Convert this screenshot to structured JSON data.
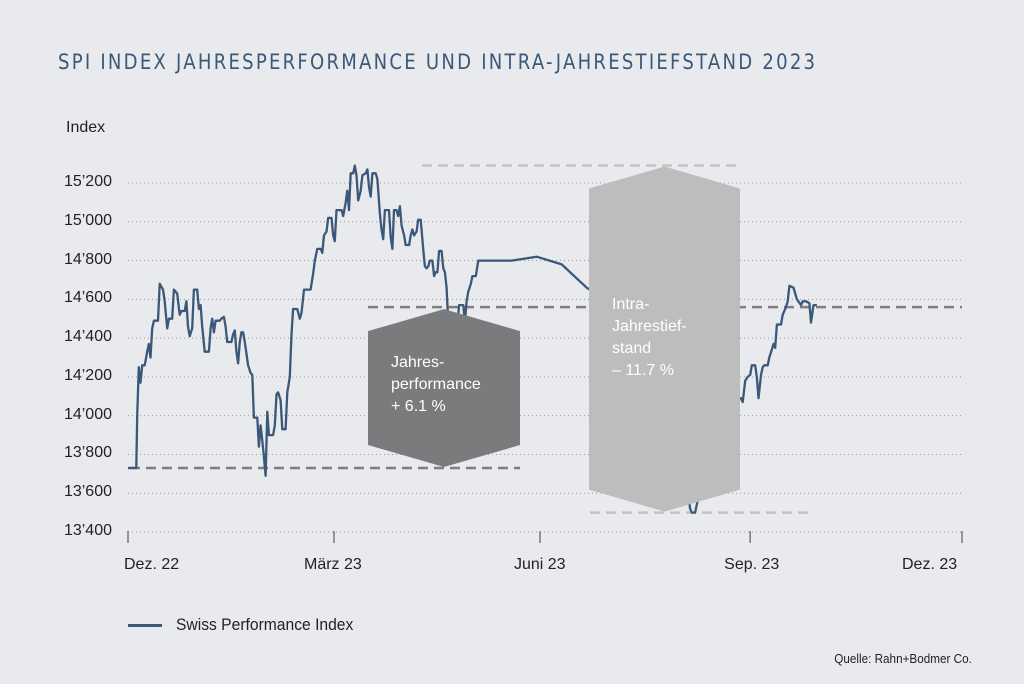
{
  "title": "SPI INDEX JAHRESPERFORMANCE UND INTRA-JAHRESTIEFSTAND 2023",
  "source": "Quelle: Rahn+Bodmer Co.",
  "colors": {
    "background": "#e9eaee",
    "line": "#3b5878",
    "title": "#3b5878",
    "performance_box": "#7a7b7d",
    "drawdown_box": "#bdbdbd",
    "dashed_dark": "#7f7f7f",
    "dashed_light": "#c4c4c4",
    "grid": "#9a9a9a"
  },
  "chart_data": {
    "type": "line",
    "title": "SPI INDEX JAHRESPERFORMANCE UND INTRA-JAHRESTIEFSTAND 2023",
    "ylabel": "Index",
    "xlabel": "",
    "ylim": [
      13400,
      15300
    ],
    "yticks": [
      13400,
      13600,
      13800,
      14000,
      14200,
      14400,
      14600,
      14800,
      15000,
      15200
    ],
    "ytick_labels": [
      "13’400",
      "13’600",
      "13’800",
      "14’000",
      "14’200",
      "14’400",
      "14’600",
      "14’800",
      "15’000",
      "15’200"
    ],
    "xticks": [
      "Dez. 22",
      "März 23",
      "Juni 23",
      "Sep. 23",
      "Dez. 23"
    ],
    "xlim_note": "x values are fractions of the span from Dez. 22 (0) to Dez. 23 (1)",
    "grid": true,
    "legend": {
      "position": "bottom-left",
      "entries": [
        "Swiss Performance Index"
      ]
    },
    "series": [
      {
        "name": "Swiss Performance Index",
        "points": [
          [
            0.0,
            13730
          ],
          [
            0.01,
            13730
          ],
          [
            0.011,
            14000
          ],
          [
            0.013,
            14250
          ],
          [
            0.015,
            14170
          ],
          [
            0.017,
            14260
          ],
          [
            0.02,
            14260
          ],
          [
            0.023,
            14330
          ],
          [
            0.025,
            14370
          ],
          [
            0.027,
            14300
          ],
          [
            0.029,
            14450
          ],
          [
            0.031,
            14490
          ],
          [
            0.036,
            14490
          ],
          [
            0.038,
            14680
          ],
          [
            0.042,
            14650
          ],
          [
            0.044,
            14590
          ],
          [
            0.047,
            14450
          ],
          [
            0.049,
            14500
          ],
          [
            0.053,
            14500
          ],
          [
            0.055,
            14650
          ],
          [
            0.059,
            14630
          ],
          [
            0.062,
            14520
          ],
          [
            0.064,
            14540
          ],
          [
            0.068,
            14540
          ],
          [
            0.07,
            14590
          ],
          [
            0.072,
            14460
          ],
          [
            0.074,
            14410
          ],
          [
            0.077,
            14450
          ],
          [
            0.079,
            14650
          ],
          [
            0.083,
            14650
          ],
          [
            0.085,
            14550
          ],
          [
            0.087,
            14570
          ],
          [
            0.089,
            14460
          ],
          [
            0.092,
            14330
          ],
          [
            0.097,
            14330
          ],
          [
            0.099,
            14450
          ],
          [
            0.101,
            14500
          ],
          [
            0.103,
            14430
          ],
          [
            0.105,
            14490
          ],
          [
            0.11,
            14490
          ],
          [
            0.112,
            14500
          ],
          [
            0.115,
            14510
          ],
          [
            0.117,
            14460
          ],
          [
            0.119,
            14380
          ],
          [
            0.124,
            14380
          ],
          [
            0.126,
            14420
          ],
          [
            0.128,
            14440
          ],
          [
            0.13,
            14330
          ],
          [
            0.132,
            14270
          ],
          [
            0.134,
            14380
          ],
          [
            0.136,
            14430
          ],
          [
            0.138,
            14430
          ],
          [
            0.14,
            14380
          ],
          [
            0.144,
            14260
          ],
          [
            0.147,
            14220
          ],
          [
            0.149,
            14210
          ],
          [
            0.151,
            13990
          ],
          [
            0.155,
            13990
          ],
          [
            0.157,
            13840
          ],
          [
            0.159,
            13950
          ],
          [
            0.161,
            13870
          ],
          [
            0.163,
            13790
          ],
          [
            0.165,
            13690
          ],
          [
            0.167,
            14020
          ],
          [
            0.169,
            13900
          ],
          [
            0.174,
            13900
          ],
          [
            0.176,
            13950
          ],
          [
            0.178,
            14110
          ],
          [
            0.18,
            14120
          ],
          [
            0.183,
            14080
          ],
          [
            0.185,
            13930
          ],
          [
            0.189,
            13930
          ],
          [
            0.191,
            14120
          ],
          [
            0.194,
            14200
          ],
          [
            0.196,
            14420
          ],
          [
            0.198,
            14550
          ],
          [
            0.203,
            14550
          ],
          [
            0.206,
            14500
          ],
          [
            0.208,
            14530
          ],
          [
            0.211,
            14650
          ],
          [
            0.219,
            14650
          ],
          [
            0.222,
            14730
          ],
          [
            0.224,
            14800
          ],
          [
            0.227,
            14860
          ],
          [
            0.231,
            14860
          ],
          [
            0.233,
            14840
          ],
          [
            0.235,
            14930
          ],
          [
            0.238,
            14950
          ],
          [
            0.24,
            15020
          ],
          [
            0.244,
            15020
          ],
          [
            0.246,
            14930
          ],
          [
            0.248,
            14900
          ],
          [
            0.25,
            15060
          ],
          [
            0.256,
            15060
          ],
          [
            0.258,
            15030
          ],
          [
            0.261,
            15100
          ],
          [
            0.263,
            15160
          ],
          [
            0.265,
            15060
          ],
          [
            0.267,
            15250
          ],
          [
            0.27,
            15250
          ],
          [
            0.272,
            15290
          ],
          [
            0.274,
            15240
          ],
          [
            0.276,
            15110
          ],
          [
            0.279,
            15160
          ],
          [
            0.281,
            15240
          ],
          [
            0.285,
            15250
          ],
          [
            0.287,
            15270
          ],
          [
            0.289,
            15180
          ],
          [
            0.291,
            15130
          ],
          [
            0.293,
            15250
          ],
          [
            0.297,
            15250
          ],
          [
            0.299,
            15220
          ],
          [
            0.302,
            15040
          ],
          [
            0.304,
            14960
          ],
          [
            0.306,
            14910
          ],
          [
            0.308,
            15060
          ],
          [
            0.313,
            15060
          ],
          [
            0.315,
            14920
          ],
          [
            0.317,
            14860
          ],
          [
            0.319,
            15060
          ],
          [
            0.322,
            15060
          ],
          [
            0.324,
            15030
          ],
          [
            0.326,
            15080
          ],
          [
            0.328,
            14980
          ],
          [
            0.331,
            14930
          ],
          [
            0.333,
            14880
          ],
          [
            0.337,
            14880
          ],
          [
            0.339,
            14930
          ],
          [
            0.341,
            14960
          ],
          [
            0.343,
            14930
          ],
          [
            0.346,
            14950
          ],
          [
            0.348,
            15010
          ],
          [
            0.351,
            15010
          ],
          [
            0.354,
            14860
          ],
          [
            0.356,
            14770
          ],
          [
            0.358,
            14760
          ],
          [
            0.36,
            14770
          ],
          [
            0.362,
            14800
          ],
          [
            0.365,
            14800
          ],
          [
            0.367,
            14720
          ],
          [
            0.369,
            14740
          ],
          [
            0.371,
            14740
          ],
          [
            0.373,
            14850
          ],
          [
            0.376,
            14850
          ],
          [
            0.378,
            14760
          ],
          [
            0.38,
            14740
          ],
          [
            0.382,
            14660
          ],
          [
            0.384,
            14470
          ],
          [
            0.386,
            14370
          ],
          [
            0.391,
            14370
          ],
          [
            0.393,
            14440
          ],
          [
            0.395,
            14470
          ],
          [
            0.397,
            14570
          ],
          [
            0.402,
            14570
          ],
          [
            0.404,
            14480
          ],
          [
            0.406,
            14590
          ],
          [
            0.408,
            14640
          ],
          [
            0.411,
            14680
          ],
          [
            0.413,
            14720
          ],
          [
            0.415,
            14720
          ],
          [
            0.417,
            14720
          ],
          [
            0.42,
            14800
          ],
          [
            0.46,
            14800
          ],
          [
            0.49,
            14820
          ],
          [
            0.52,
            14780
          ],
          [
            0.55,
            14660
          ],
          [
            0.585,
            14560
          ],
          [
            0.6,
            14700
          ],
          [
            0.61,
            14350
          ],
          [
            0.613,
            14260
          ],
          [
            0.615,
            14310
          ],
          [
            0.617,
            14390
          ],
          [
            0.619,
            14390
          ],
          [
            0.621,
            14310
          ],
          [
            0.624,
            14130
          ],
          [
            0.626,
            14080
          ],
          [
            0.628,
            14100
          ],
          [
            0.631,
            14140
          ],
          [
            0.635,
            14140
          ],
          [
            0.637,
            14100
          ],
          [
            0.64,
            14360
          ],
          [
            0.642,
            14410
          ],
          [
            0.644,
            14330
          ],
          [
            0.646,
            14230
          ],
          [
            0.652,
            14230
          ],
          [
            0.654,
            14170
          ],
          [
            0.656,
            14000
          ],
          [
            0.658,
            13780
          ],
          [
            0.661,
            13560
          ],
          [
            0.667,
            13560
          ],
          [
            0.669,
            13550
          ],
          [
            0.672,
            13590
          ],
          [
            0.674,
            13520
          ],
          [
            0.676,
            13500
          ],
          [
            0.68,
            13500
          ],
          [
            0.683,
            13560
          ],
          [
            0.687,
            13620
          ],
          [
            0.69,
            13750
          ],
          [
            0.693,
            13890
          ],
          [
            0.697,
            13890
          ],
          [
            0.699,
            13880
          ],
          [
            0.702,
            13870
          ],
          [
            0.706,
            13850
          ],
          [
            0.709,
            13860
          ],
          [
            0.711,
            13930
          ],
          [
            0.713,
            13850
          ],
          [
            0.718,
            13850
          ],
          [
            0.72,
            13900
          ],
          [
            0.722,
            14090
          ],
          [
            0.726,
            14090
          ],
          [
            0.728,
            13990
          ],
          [
            0.731,
            14090
          ],
          [
            0.735,
            14090
          ],
          [
            0.737,
            14070
          ],
          [
            0.74,
            14180
          ],
          [
            0.743,
            14200
          ],
          [
            0.746,
            14210
          ],
          [
            0.748,
            14260
          ],
          [
            0.752,
            14260
          ],
          [
            0.754,
            14200
          ],
          [
            0.756,
            14090
          ],
          [
            0.759,
            14210
          ],
          [
            0.761,
            14250
          ],
          [
            0.763,
            14260
          ],
          [
            0.767,
            14260
          ],
          [
            0.769,
            14300
          ],
          [
            0.772,
            14340
          ],
          [
            0.774,
            14370
          ],
          [
            0.776,
            14350
          ],
          [
            0.778,
            14470
          ],
          [
            0.783,
            14470
          ],
          [
            0.785,
            14520
          ],
          [
            0.789,
            14560
          ],
          [
            0.791,
            14590
          ],
          [
            0.793,
            14670
          ],
          [
            0.798,
            14660
          ],
          [
            0.8,
            14630
          ],
          [
            0.802,
            14600
          ],
          [
            0.807,
            14570
          ],
          [
            0.809,
            14590
          ],
          [
            0.813,
            14590
          ],
          [
            0.817,
            14580
          ],
          [
            0.819,
            14480
          ],
          [
            0.822,
            14570
          ],
          [
            0.826,
            14570
          ]
        ]
      }
    ],
    "annotations": [
      {
        "label": "Jahres-\nperformance\n+ 6.1 %",
        "type": "performance",
        "from_value": 13730,
        "to_value": 14560
      },
      {
        "label": "Intra-\nJahrestief-\nstand\n– 11.7 %",
        "type": "drawdown",
        "from_value": 15290,
        "to_value": 13500
      }
    ]
  },
  "annotation_labels": {
    "performance": [
      "Jahres-",
      "performance",
      "+ 6.1 %"
    ],
    "drawdown": [
      "Intra-",
      "Jahrestief-",
      "stand",
      "– 11.7 %"
    ]
  }
}
